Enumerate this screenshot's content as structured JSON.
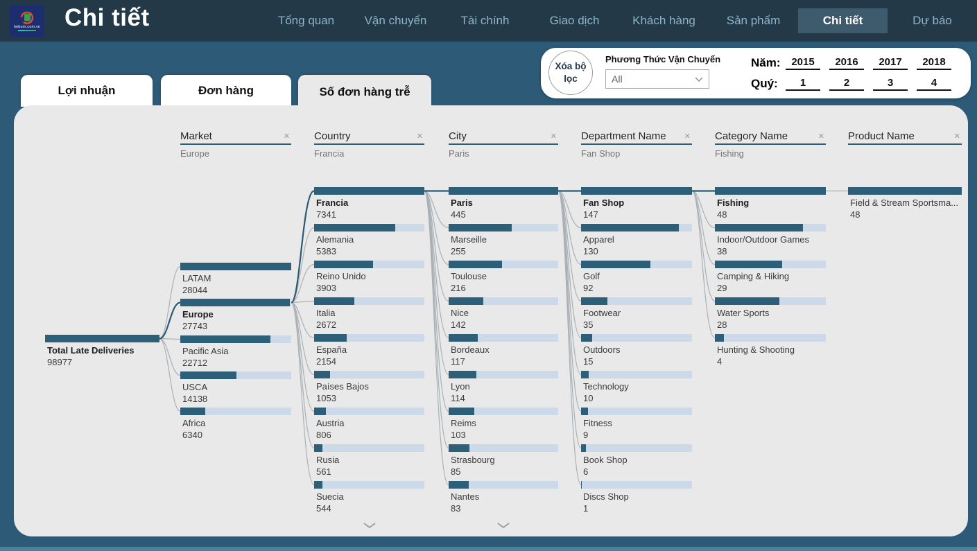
{
  "nav": {
    "logo_text": "hebum.com.vn",
    "title": "Chi tiết",
    "items": [
      {
        "label": "Tổng quan",
        "active": false
      },
      {
        "label": "Vận chuyển",
        "active": false
      },
      {
        "label": "Tài chính",
        "active": false
      },
      {
        "label": "Giao dịch",
        "active": false
      },
      {
        "label": "Khách hàng",
        "active": false
      },
      {
        "label": "Sản phẩm",
        "active": false
      },
      {
        "label": "Chi tiết",
        "active": true
      },
      {
        "label": "Dự báo",
        "active": false
      }
    ]
  },
  "filters": {
    "clear_label": "Xóa bộ lọc",
    "shipping_label": "Phương Thức Vận Chuyển",
    "shipping_value": "All",
    "year_label": "Năm:",
    "years": [
      "2015",
      "2016",
      "2017",
      "2018"
    ],
    "quarter_label": "Quý:",
    "quarters": [
      "1",
      "2",
      "3",
      "4"
    ]
  },
  "tabs": [
    {
      "label": "Lợi nhuận",
      "active": false
    },
    {
      "label": "Đơn hàng",
      "active": false
    },
    {
      "label": "Số đơn hàng trễ",
      "active": true
    }
  ],
  "icons": {
    "close": "✕"
  },
  "colors": {
    "accent": "#2e5f78",
    "bar_fill": "#2e5f78",
    "bar_track": "#ccd9e9",
    "panel": "#e9e9e9",
    "topbar": "#233947",
    "background": "#2d5a76",
    "active_nav": "#3d5b6d"
  },
  "tree": {
    "measure": "Số đơn hàng trễ",
    "columns": [
      {
        "key": "root",
        "header": null,
        "more": false,
        "nodes": [
          {
            "label": "Total Late Deliveries",
            "value": 98977,
            "selected": false,
            "bold": true
          }
        ]
      },
      {
        "key": "market",
        "header": {
          "title": "Market",
          "breadcrumb": "Europe"
        },
        "more": false,
        "nodes": [
          {
            "label": "LATAM",
            "value": 28044,
            "selected": false
          },
          {
            "label": "Europe",
            "value": 27743,
            "selected": true
          },
          {
            "label": "Pacific Asia",
            "value": 22712,
            "selected": false
          },
          {
            "label": "USCA",
            "value": 14138,
            "selected": false
          },
          {
            "label": "Africa",
            "value": 6340,
            "selected": false
          }
        ]
      },
      {
        "key": "country",
        "header": {
          "title": "Country",
          "breadcrumb": "Francia"
        },
        "more": true,
        "nodes": [
          {
            "label": "Francia",
            "value": 7341,
            "selected": true
          },
          {
            "label": "Alemania",
            "value": 5383,
            "selected": false
          },
          {
            "label": "Reino Unido",
            "value": 3903,
            "selected": false
          },
          {
            "label": "Italia",
            "value": 2672,
            "selected": false
          },
          {
            "label": "España",
            "value": 2154,
            "selected": false
          },
          {
            "label": "Países Bajos",
            "value": 1053,
            "selected": false
          },
          {
            "label": "Austria",
            "value": 806,
            "selected": false
          },
          {
            "label": "Rusia",
            "value": 561,
            "selected": false
          },
          {
            "label": "Suecia",
            "value": 544,
            "selected": false
          }
        ]
      },
      {
        "key": "city",
        "header": {
          "title": "City",
          "breadcrumb": "Paris"
        },
        "more": true,
        "nodes": [
          {
            "label": "Paris",
            "value": 445,
            "selected": true
          },
          {
            "label": "Marseille",
            "value": 255,
            "selected": false
          },
          {
            "label": "Toulouse",
            "value": 216,
            "selected": false
          },
          {
            "label": "Nice",
            "value": 142,
            "selected": false
          },
          {
            "label": "Bordeaux",
            "value": 117,
            "selected": false
          },
          {
            "label": "Lyon",
            "value": 114,
            "selected": false
          },
          {
            "label": "Reims",
            "value": 103,
            "selected": false
          },
          {
            "label": "Strasbourg",
            "value": 85,
            "selected": false
          },
          {
            "label": "Nantes",
            "value": 83,
            "selected": false
          }
        ]
      },
      {
        "key": "department",
        "header": {
          "title": "Department Name",
          "breadcrumb": "Fan Shop"
        },
        "more": false,
        "nodes": [
          {
            "label": "Fan Shop",
            "value": 147,
            "selected": true
          },
          {
            "label": "Apparel",
            "value": 130,
            "selected": false
          },
          {
            "label": "Golf",
            "value": 92,
            "selected": false
          },
          {
            "label": "Footwear",
            "value": 35,
            "selected": false
          },
          {
            "label": "Outdoors",
            "value": 15,
            "selected": false
          },
          {
            "label": "Technology",
            "value": 10,
            "selected": false
          },
          {
            "label": "Fitness",
            "value": 9,
            "selected": false
          },
          {
            "label": "Book Shop",
            "value": 6,
            "selected": false
          },
          {
            "label": "Discs Shop",
            "value": 1,
            "selected": false
          }
        ]
      },
      {
        "key": "category",
        "header": {
          "title": "Category Name",
          "breadcrumb": "Fishing"
        },
        "more": false,
        "nodes": [
          {
            "label": "Fishing",
            "value": 48,
            "selected": true
          },
          {
            "label": "Indoor/Outdoor Games",
            "value": 38,
            "selected": false
          },
          {
            "label": "Camping & Hiking",
            "value": 29,
            "selected": false
          },
          {
            "label": "Water Sports",
            "value": 28,
            "selected": false
          },
          {
            "label": "Hunting & Shooting",
            "value": 4,
            "selected": false
          }
        ]
      },
      {
        "key": "product",
        "header": {
          "title": "Product Name",
          "breadcrumb": ""
        },
        "more": false,
        "nodes": [
          {
            "label": "Field & Stream Sportsma...",
            "value": 48,
            "selected": false
          }
        ]
      }
    ]
  }
}
